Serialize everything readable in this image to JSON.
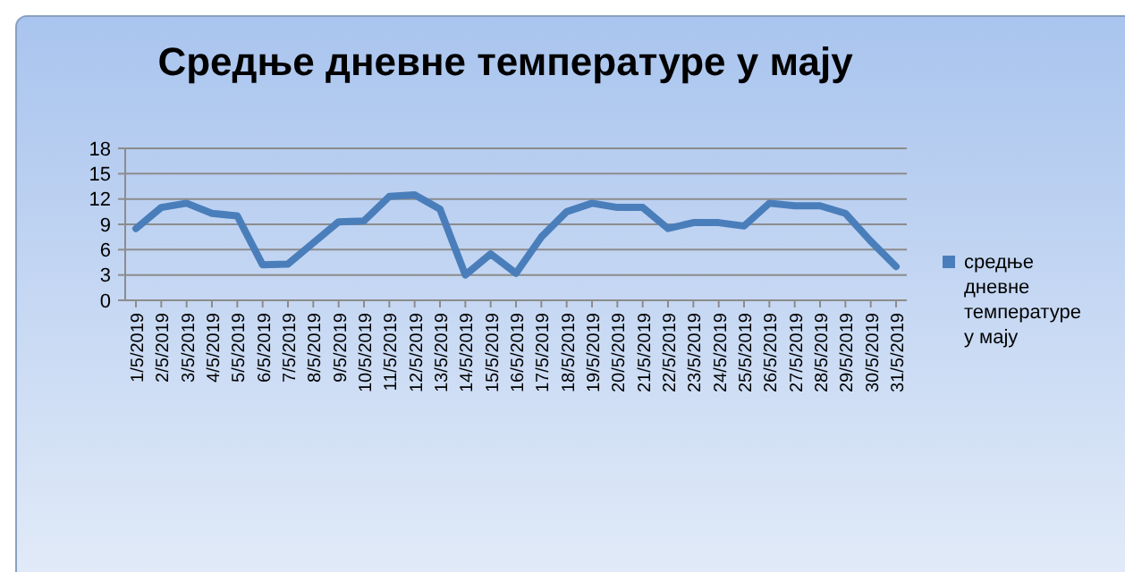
{
  "chart_data": {
    "type": "line",
    "title": "Средње дневне температуре у мају",
    "categories": [
      "1/5/2019",
      "2/5/2019",
      "3/5/2019",
      "4/5/2019",
      "5/5/2019",
      "6/5/2019",
      "7/5/2019",
      "8/5/2019",
      "9/5/2019",
      "10/5/2019",
      "11/5/2019",
      "12/5/2019",
      "13/5/2019",
      "14/5/2019",
      "15/5/2019",
      "16/5/2019",
      "17/5/2019",
      "18/5/2019",
      "19/5/2019",
      "20/5/2019",
      "21/5/2019",
      "22/5/2019",
      "23/5/2019",
      "24/5/2019",
      "25/5/2019",
      "26/5/2019",
      "27/5/2019",
      "28/5/2019",
      "29/5/2019",
      "30/5/2019",
      "31/5/2019"
    ],
    "series": [
      {
        "name": "средње дневне температуре у мају",
        "color": "#4a7ebb",
        "values": [
          8.5,
          11,
          11.5,
          10.3,
          10,
          4.2,
          4.3,
          6.8,
          9.3,
          9.4,
          12.3,
          12.5,
          10.8,
          3,
          5.5,
          3.2,
          7.5,
          10.5,
          11.5,
          11,
          11,
          8.5,
          9.2,
          9.2,
          8.8,
          11.5,
          11.2,
          11.2,
          10.3,
          7,
          4
        ]
      }
    ],
    "ylim": [
      0,
      18
    ],
    "yticks": [
      0,
      3,
      6,
      9,
      12,
      15,
      18
    ],
    "grid": "y",
    "legend": "right",
    "marker": "none",
    "line_style": "solid"
  }
}
